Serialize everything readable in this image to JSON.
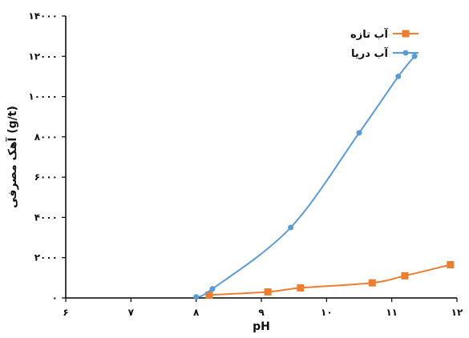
{
  "chart_data": {
    "type": "line",
    "title": "",
    "xlabel": "pH",
    "ylabel": "آهک مصرفی (g/t)",
    "xlim": [
      6,
      12
    ],
    "ylim": [
      0,
      14000
    ],
    "x_ticks": [
      6,
      7,
      8,
      9,
      10,
      11,
      12
    ],
    "x_tick_labels": [
      "۶",
      "۷",
      "۸",
      "۹",
      "۱۰",
      "۱۱",
      "۱۲"
    ],
    "y_ticks": [
      0,
      2000,
      4000,
      6000,
      8000,
      10000,
      12000,
      14000
    ],
    "y_tick_labels": [
      "۰",
      "۲۰۰۰",
      "۴۰۰۰",
      "۶۰۰۰",
      "۸۰۰۰",
      "۱۰۰۰۰",
      "۱۲۰۰۰",
      "۱۴۰۰۰"
    ],
    "grid": false,
    "legend_position": "top-right",
    "series": [
      {
        "name": "آب تازه",
        "color": "#ED7D31",
        "marker": "square",
        "x": [
          8.2,
          9.1,
          9.6,
          10.7,
          11.2,
          11.9
        ],
        "y": [
          150,
          300,
          500,
          750,
          1100,
          1650
        ]
      },
      {
        "name": "آب دریا",
        "color": "#5B9BD5",
        "marker": "circle",
        "x": [
          8.0,
          8.25,
          9.45,
          10.5,
          11.1,
          11.35
        ],
        "y": [
          50,
          450,
          3500,
          8200,
          11000,
          12000
        ]
      }
    ]
  }
}
